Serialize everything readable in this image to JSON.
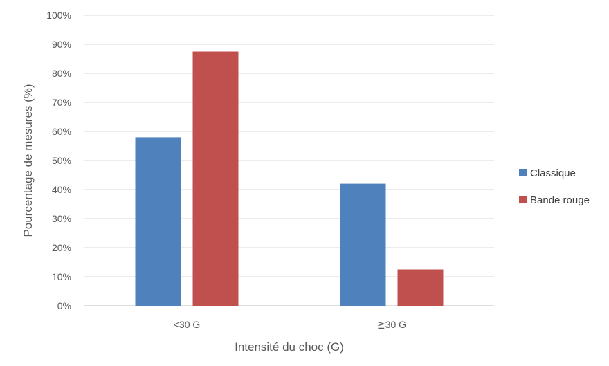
{
  "chart_data": {
    "type": "bar",
    "title": "",
    "xlabel": "Intensité du choc (G)",
    "ylabel": "Pourcentage de mesures (%)",
    "categories": [
      "<30 G",
      "≧30 G"
    ],
    "series": [
      {
        "name": "Classique",
        "values": [
          58,
          42
        ],
        "color": "#4F81BD"
      },
      {
        "name": "Bande rouge",
        "values": [
          87.5,
          12.5
        ],
        "color": "#C0504D"
      }
    ],
    "ylim": [
      0,
      100
    ],
    "yticks": [
      "0%",
      "10%",
      "20%",
      "30%",
      "40%",
      "50%",
      "60%",
      "70%",
      "80%",
      "90%",
      "100%"
    ],
    "grid": true,
    "legend_position": "right"
  }
}
